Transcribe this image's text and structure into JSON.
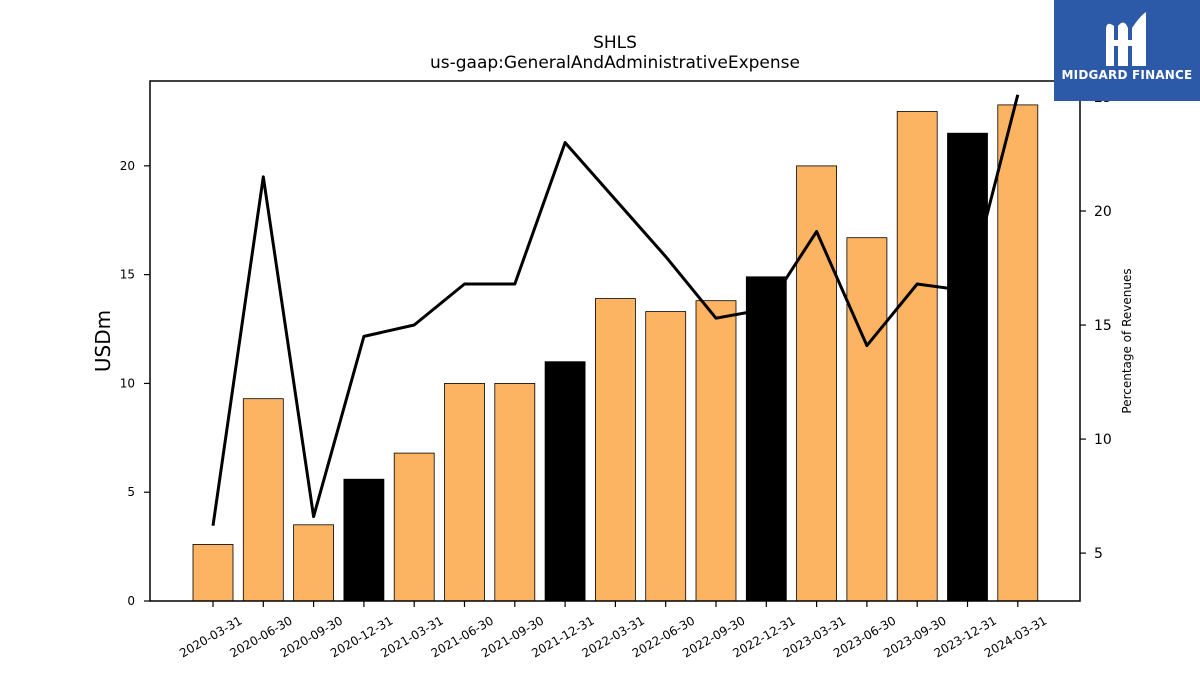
{
  "chart_data": {
    "type": "bar",
    "title": "SHLS",
    "subtitle": "us-gaap:GeneralAndAdministrativeExpense",
    "ylabel": "USDm",
    "y2label": "Percentage of Revenues",
    "categories": [
      "2020-03-31",
      "2020-06-30",
      "2020-09-30",
      "2020-12-31",
      "2021-03-31",
      "2021-06-30",
      "2021-09-30",
      "2021-12-31",
      "2022-03-31",
      "2022-06-30",
      "2022-09-30",
      "2022-12-31",
      "2023-03-31",
      "2023-06-30",
      "2023-09-30",
      "2023-12-31",
      "2024-03-31"
    ],
    "values": [
      2.6,
      9.3,
      3.5,
      5.6,
      6.8,
      10.0,
      10.0,
      11.0,
      13.9,
      13.3,
      13.8,
      14.9,
      20.0,
      16.7,
      22.5,
      21.5,
      22.8
    ],
    "bar_colors": [
      "#fdb462",
      "#fdb462",
      "#fdb462",
      "#000000",
      "#fdb462",
      "#fdb462",
      "#fdb462",
      "#000000",
      "#fdb462",
      "#fdb462",
      "#fdb462",
      "#000000",
      "#fdb462",
      "#fdb462",
      "#fdb462",
      "#000000",
      "#fdb462"
    ],
    "line_series": {
      "axis": "right",
      "values": [
        6.2,
        21.5,
        6.6,
        14.5,
        15.0,
        16.8,
        16.8,
        23.0,
        20.5,
        18.0,
        15.3,
        15.7,
        19.1,
        14.1,
        16.8,
        16.5,
        25.1
      ],
      "color": "#000000"
    },
    "ylim": [
      0,
      23.9
    ],
    "y2lim": [
      2.9,
      25.7
    ],
    "yticks": [
      0,
      5,
      10,
      15,
      20
    ],
    "y2ticks": [
      5,
      10,
      15,
      20,
      25
    ],
    "grid": false
  },
  "logo": {
    "text": "MIDGARD FINANCE",
    "background": "#2c5aa8"
  }
}
